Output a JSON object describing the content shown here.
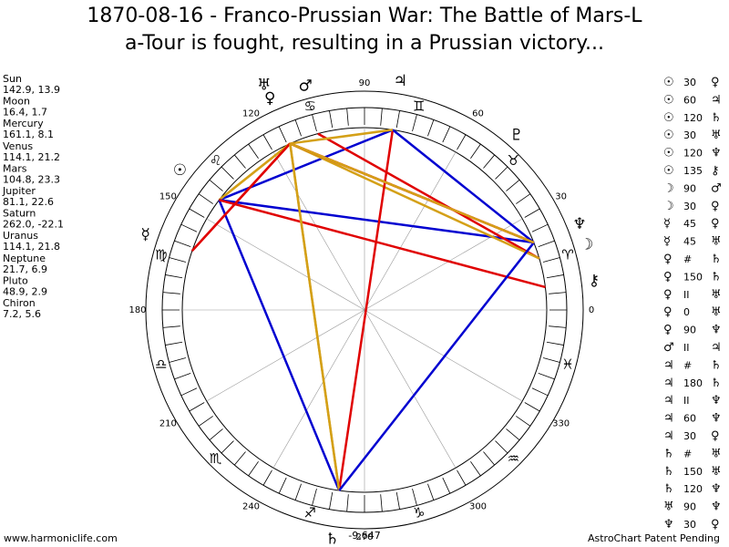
{
  "header": {
    "title_line1": "1870-08-16 - Franco-Prussian War: The Battle of Mars-L",
    "title_line2": "a-Tour is fought, resulting in a Prussian victory..."
  },
  "planets": [
    {
      "name": "Sun",
      "glyph": "☉",
      "coords": "142.9, 13.9"
    },
    {
      "name": "Moon",
      "glyph": "☽",
      "coords": "16.4, 1.7"
    },
    {
      "name": "Mercury",
      "glyph": "☿",
      "coords": "161.1, 8.1"
    },
    {
      "name": "Venus",
      "glyph": "♀",
      "coords": "114.1, 21.2"
    },
    {
      "name": "Mars",
      "glyph": "♂",
      "coords": "104.8, 23.3"
    },
    {
      "name": "Jupiter",
      "glyph": "♃",
      "coords": "81.1, 22.6"
    },
    {
      "name": "Saturn",
      "glyph": "♄",
      "coords": "262.0, -22.1"
    },
    {
      "name": "Uranus",
      "glyph": "♅",
      "coords": "114.1, 21.8"
    },
    {
      "name": "Neptune",
      "glyph": "♆",
      "coords": "21.7, 6.9"
    },
    {
      "name": "Pluto",
      "glyph": "♇",
      "coords": "48.9, 2.9"
    },
    {
      "name": "Chiron",
      "glyph": "⚷",
      "coords": "7.2, 5.6"
    }
  ],
  "degrees": [
    0,
    30,
    60,
    90,
    120,
    150,
    180,
    210,
    240,
    270,
    300,
    330
  ],
  "zodiac": [
    "♈",
    "♉",
    "♊",
    "♋",
    "♌",
    "♍",
    "♎",
    "♏",
    "♐",
    "♑",
    "♒",
    "♓"
  ],
  "aspects": [
    {
      "a": "☉",
      "aspect": "30",
      "b": "♀"
    },
    {
      "a": "☉",
      "aspect": "60",
      "b": "♃"
    },
    {
      "a": "☉",
      "aspect": "120",
      "b": "♄"
    },
    {
      "a": "☉",
      "aspect": "30",
      "b": "♅"
    },
    {
      "a": "☉",
      "aspect": "120",
      "b": "♆"
    },
    {
      "a": "☉",
      "aspect": "135",
      "b": "⚷"
    },
    {
      "a": "☽",
      "aspect": "90",
      "b": "♂"
    },
    {
      "a": "☽",
      "aspect": "30",
      "b": "♀"
    },
    {
      "a": "☿",
      "aspect": "45",
      "b": "♀"
    },
    {
      "a": "☿",
      "aspect": "45",
      "b": "♅"
    },
    {
      "a": "♀",
      "aspect": "#",
      "b": "♄"
    },
    {
      "a": "♀",
      "aspect": "150",
      "b": "♄"
    },
    {
      "a": "♀",
      "aspect": "II",
      "b": "♅"
    },
    {
      "a": "♀",
      "aspect": "0",
      "b": "♅"
    },
    {
      "a": "♀",
      "aspect": "90",
      "b": "♆"
    },
    {
      "a": "♂",
      "aspect": "II",
      "b": "♃"
    },
    {
      "a": "♃",
      "aspect": "#",
      "b": "♄"
    },
    {
      "a": "♃",
      "aspect": "180",
      "b": "♄"
    },
    {
      "a": "♃",
      "aspect": "II",
      "b": "♆"
    },
    {
      "a": "♃",
      "aspect": "60",
      "b": "♆"
    },
    {
      "a": "♃",
      "aspect": "30",
      "b": "♀"
    },
    {
      "a": "♄",
      "aspect": "#",
      "b": "♅"
    },
    {
      "a": "♄",
      "aspect": "150",
      "b": "♅"
    },
    {
      "a": "♄",
      "aspect": "120",
      "b": "♆"
    },
    {
      "a": "♅",
      "aspect": "90",
      "b": "♆"
    },
    {
      "a": "♆",
      "aspect": "30",
      "b": "♀"
    }
  ],
  "bottom_value": "-9,647",
  "footer": {
    "left": "www.harmoniclife.com",
    "right": "AstroChart Patent Pending"
  }
}
